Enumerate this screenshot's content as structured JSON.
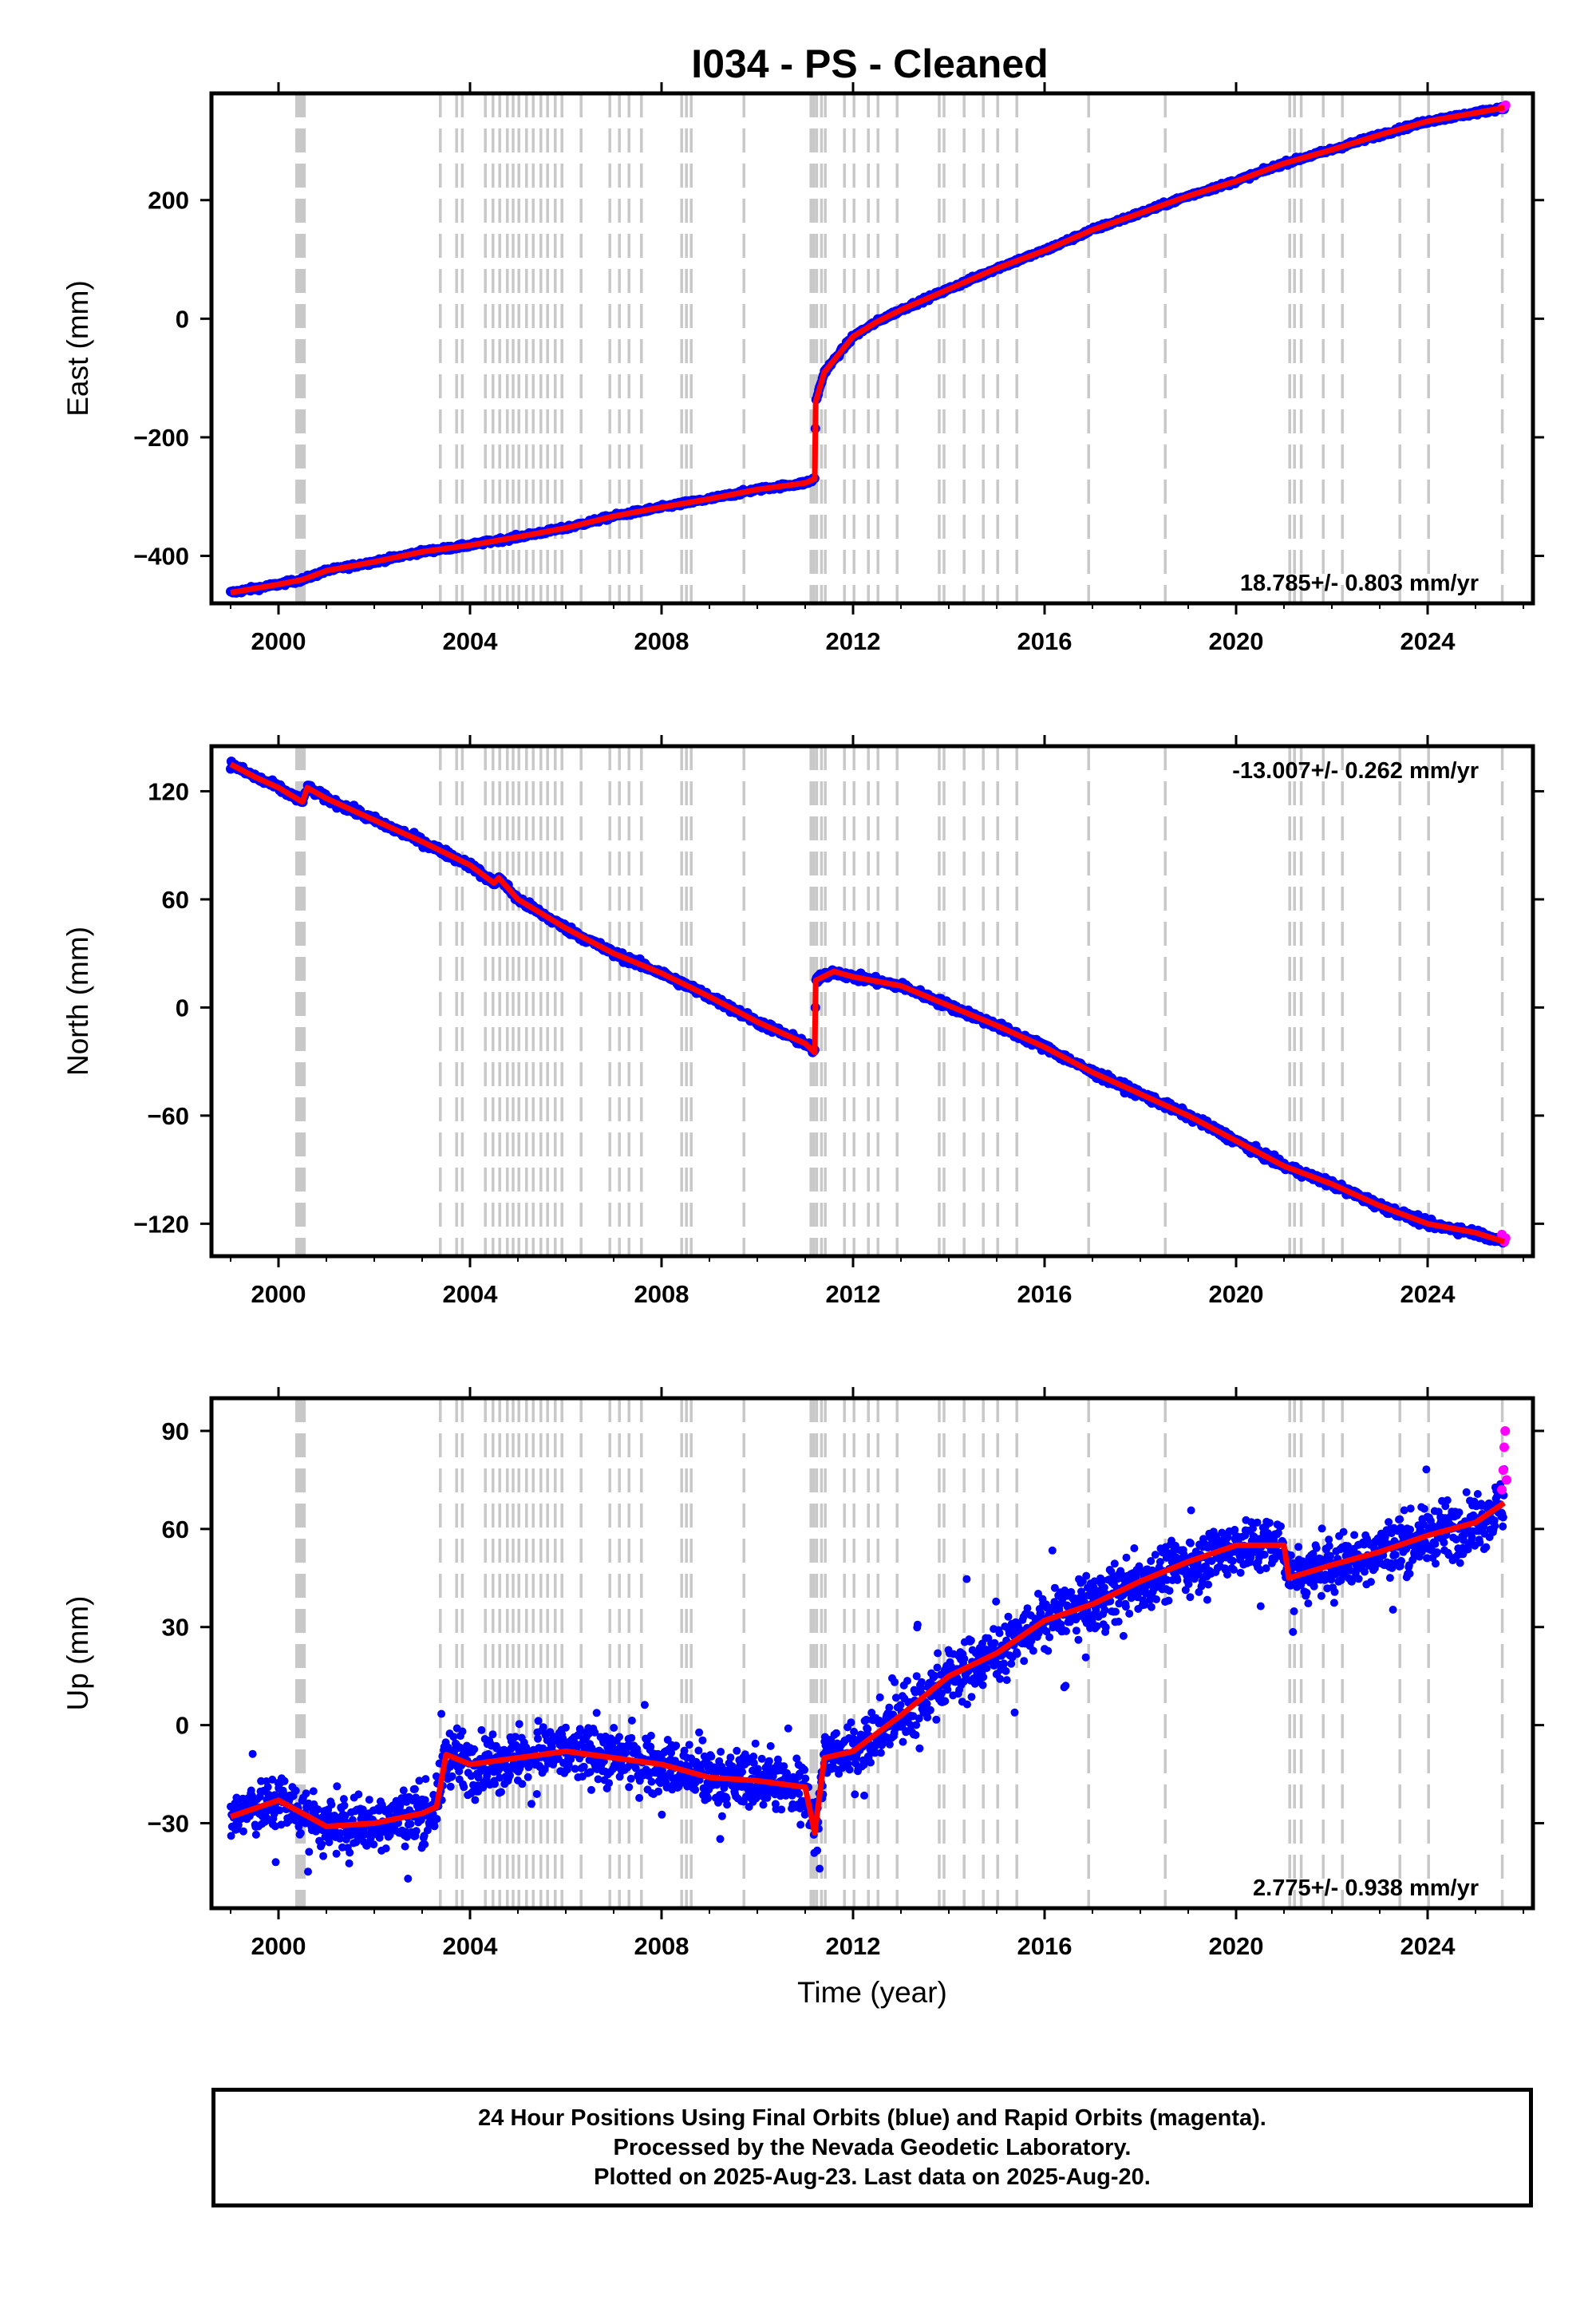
{
  "title": "I034  - PS - Cleaned",
  "footer": {
    "line1": "24 Hour Positions Using Final Orbits (blue) and Rapid Orbits (magenta).",
    "line2": "Processed by the Nevada Geodetic Laboratory.",
    "line3": "Plotted on 2025-Aug-23. Last data on 2025-Aug-20."
  },
  "colors": {
    "final": "#0000ff",
    "rapid": "#ff00ff",
    "model": "#ff0000",
    "event": "#c8c8c8",
    "axis": "#000000"
  },
  "chart_data": [
    {
      "type": "scatter",
      "ylabel": "East (mm)",
      "xlabel": "",
      "xlim": [
        1998.6,
        2026.2
      ],
      "ylim": [
        -480,
        380
      ],
      "xticks": [
        "2000",
        "2004",
        "2008",
        "2012",
        "2016",
        "2020",
        "2024"
      ],
      "yticks": [
        "-400",
        "-200",
        "0",
        "200"
      ],
      "rate_label": "18.785+/- 0.803 mm/yr",
      "rate_position": "bottom-right",
      "series": [
        {
          "points": [
            [
              1999.0,
              -462
            ],
            [
              2000.0,
              -448
            ],
            [
              2000.5,
              -440
            ],
            [
              2001.0,
              -425
            ],
            [
              2002.0,
              -410
            ],
            [
              2003.0,
              -393
            ],
            [
              2004.0,
              -382
            ],
            [
              2005.0,
              -368
            ],
            [
              2006.0,
              -353
            ],
            [
              2007.0,
              -333
            ],
            [
              2008.0,
              -318
            ],
            [
              2009.0,
              -304
            ],
            [
              2010.0,
              -288
            ],
            [
              2011.0,
              -277
            ],
            [
              2011.2,
              -270
            ],
            [
              2011.22,
              -140
            ],
            [
              2011.4,
              -90
            ],
            [
              2011.7,
              -60
            ],
            [
              2012.0,
              -30
            ],
            [
              2012.5,
              -5
            ],
            [
              2013.0,
              15
            ],
            [
              2014.0,
              50
            ],
            [
              2015.0,
              85
            ],
            [
              2016.0,
              115
            ],
            [
              2017.0,
              150
            ],
            [
              2018.0,
              178
            ],
            [
              2019.0,
              207
            ],
            [
              2020.0,
              232
            ],
            [
              2021.0,
              262
            ],
            [
              2022.0,
              285
            ],
            [
              2023.0,
              310
            ],
            [
              2024.0,
              333
            ],
            [
              2025.0,
              347
            ],
            [
              2025.6,
              356
            ]
          ]
        }
      ],
      "rapid_points": [
        [
          2025.55,
          355
        ],
        [
          2025.6,
          358
        ],
        [
          2025.63,
          360
        ]
      ]
    },
    {
      "type": "scatter",
      "ylabel": "North (mm)",
      "xlabel": "",
      "xlim": [
        1998.6,
        2026.2
      ],
      "ylim": [
        -138,
        145
      ],
      "xticks": [
        "2000",
        "2004",
        "2008",
        "2012",
        "2016",
        "2020",
        "2024"
      ],
      "yticks": [
        "-120",
        "-60",
        "0",
        "60",
        "120"
      ],
      "rate_label": "-13.007+/- 0.262 mm/yr",
      "rate_position": "top-right",
      "series": [
        {
          "points": [
            [
              1999.0,
              135
            ],
            [
              1999.5,
              128
            ],
            [
              2000.0,
              122
            ],
            [
              2000.5,
              114
            ],
            [
              2000.6,
              122
            ],
            [
              2001.0,
              116
            ],
            [
              2002.0,
              104
            ],
            [
              2003.0,
              92
            ],
            [
              2004.0,
              79
            ],
            [
              2004.5,
              69
            ],
            [
              2004.6,
              72
            ],
            [
              2005.0,
              60
            ],
            [
              2006.0,
              44
            ],
            [
              2007.0,
              30
            ],
            [
              2008.0,
              19
            ],
            [
              2009.0,
              6
            ],
            [
              2010.0,
              -8
            ],
            [
              2011.0,
              -20
            ],
            [
              2011.2,
              -25
            ],
            [
              2011.22,
              15
            ],
            [
              2011.6,
              20
            ],
            [
              2012.0,
              17
            ],
            [
              2013.0,
              12
            ],
            [
              2014.0,
              1
            ],
            [
              2015.0,
              -10
            ],
            [
              2016.0,
              -22
            ],
            [
              2017.0,
              -36
            ],
            [
              2018.0,
              -48
            ],
            [
              2019.0,
              -60
            ],
            [
              2020.0,
              -74
            ],
            [
              2021.0,
              -88
            ],
            [
              2022.0,
              -98
            ],
            [
              2023.0,
              -110
            ],
            [
              2024.0,
              -120
            ],
            [
              2025.0,
              -125
            ],
            [
              2025.6,
              -130
            ]
          ]
        }
      ],
      "rapid_points": [
        [
          2025.55,
          -126
        ],
        [
          2025.6,
          -130
        ],
        [
          2025.63,
          -128
        ]
      ]
    },
    {
      "type": "scatter",
      "ylabel": "Up (mm)",
      "xlabel": "Time (year)",
      "xlim": [
        1998.6,
        2026.2
      ],
      "ylim": [
        -56,
        100
      ],
      "xticks": [
        "2000",
        "2004",
        "2008",
        "2012",
        "2016",
        "2020",
        "2024"
      ],
      "yticks": [
        "-30",
        "0",
        "30",
        "60",
        "90"
      ],
      "rate_label": "2.775+/- 0.938 mm/yr",
      "rate_position": "bottom-right",
      "series": [
        {
          "points": [
            [
              1999.0,
              -28
            ],
            [
              2000.0,
              -23
            ],
            [
              2001.0,
              -31
            ],
            [
              2002.0,
              -30
            ],
            [
              2003.0,
              -27
            ],
            [
              2003.3,
              -25
            ],
            [
              2003.5,
              -9
            ],
            [
              2004.0,
              -12
            ],
            [
              2005.0,
              -10
            ],
            [
              2006.0,
              -8
            ],
            [
              2007.0,
              -10
            ],
            [
              2008.0,
              -12
            ],
            [
              2009.0,
              -16
            ],
            [
              2010.0,
              -17
            ],
            [
              2011.0,
              -19
            ],
            [
              2011.2,
              -33
            ],
            [
              2011.4,
              -10
            ],
            [
              2012.0,
              -8
            ],
            [
              2013.0,
              3
            ],
            [
              2014.0,
              15
            ],
            [
              2015.0,
              22
            ],
            [
              2016.0,
              32
            ],
            [
              2017.0,
              37
            ],
            [
              2018.0,
              44
            ],
            [
              2019.0,
              50
            ],
            [
              2020.0,
              55
            ],
            [
              2021.0,
              55
            ],
            [
              2021.1,
              45
            ],
            [
              2022.0,
              49
            ],
            [
              2023.0,
              53
            ],
            [
              2024.0,
              58
            ],
            [
              2025.0,
              62
            ],
            [
              2025.6,
              68
            ]
          ]
        }
      ],
      "rapid_points": [
        [
          2025.55,
          72
        ],
        [
          2025.58,
          78
        ],
        [
          2025.6,
          85
        ],
        [
          2025.62,
          90
        ],
        [
          2025.65,
          75
        ]
      ]
    }
  ],
  "events": [
    2000.38,
    2000.42,
    2000.46,
    2000.5,
    2000.54,
    2003.38,
    2003.72,
    2003.84,
    2004.32,
    2004.48,
    2004.62,
    2004.78,
    2004.9,
    2005.02,
    2005.18,
    2005.32,
    2005.48,
    2005.62,
    2005.78,
    2005.92,
    2006.32,
    2006.92,
    2007.12,
    2007.32,
    2007.58,
    2008.42,
    2008.52,
    2008.62,
    2009.72,
    2011.12,
    2011.18,
    2011.24,
    2011.34,
    2011.42,
    2011.82,
    2012.02,
    2012.32,
    2012.52,
    2012.92,
    2013.8,
    2013.9,
    2014.32,
    2014.72,
    2015.02,
    2015.42,
    2016.92,
    2018.52,
    2021.12,
    2021.22,
    2021.36,
    2021.82,
    2022.22,
    2023.42,
    2024.02,
    2025.56
  ]
}
